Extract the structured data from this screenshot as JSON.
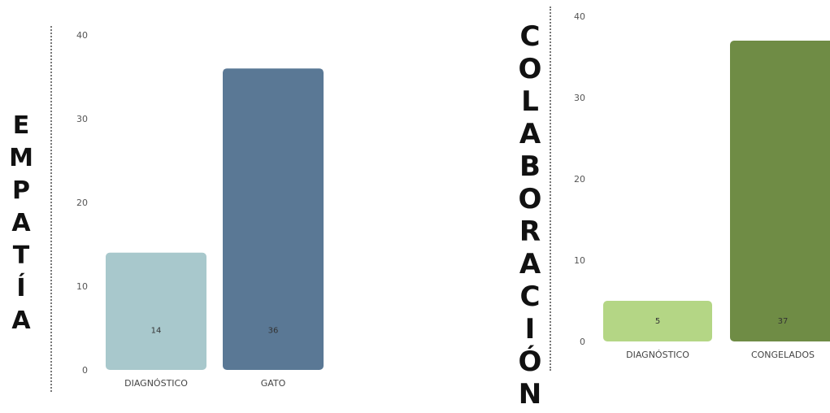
{
  "chart_data": [
    {
      "type": "bar",
      "title": "EMPATÍA",
      "categories": [
        "DIAGNÓSTICO",
        "GATO"
      ],
      "values": [
        14,
        36
      ],
      "ylim": [
        0,
        40
      ],
      "yticks": [
        0,
        10,
        20,
        30,
        40
      ],
      "data_labels": [
        "14",
        "36"
      ],
      "colors": [
        "#a8c8cc",
        "#5a7895"
      ],
      "grid": false
    },
    {
      "type": "bar",
      "title": "COLABORACIÓN",
      "categories": [
        "DIAGNÓSTICO",
        "CONGELADOS"
      ],
      "values": [
        5,
        37
      ],
      "ylim": [
        0,
        40
      ],
      "yticks": [
        0,
        10,
        20,
        30,
        40
      ],
      "data_labels": [
        "5",
        "37"
      ],
      "colors": [
        "#b4d685",
        "#6f8c45"
      ],
      "grid": false
    }
  ]
}
